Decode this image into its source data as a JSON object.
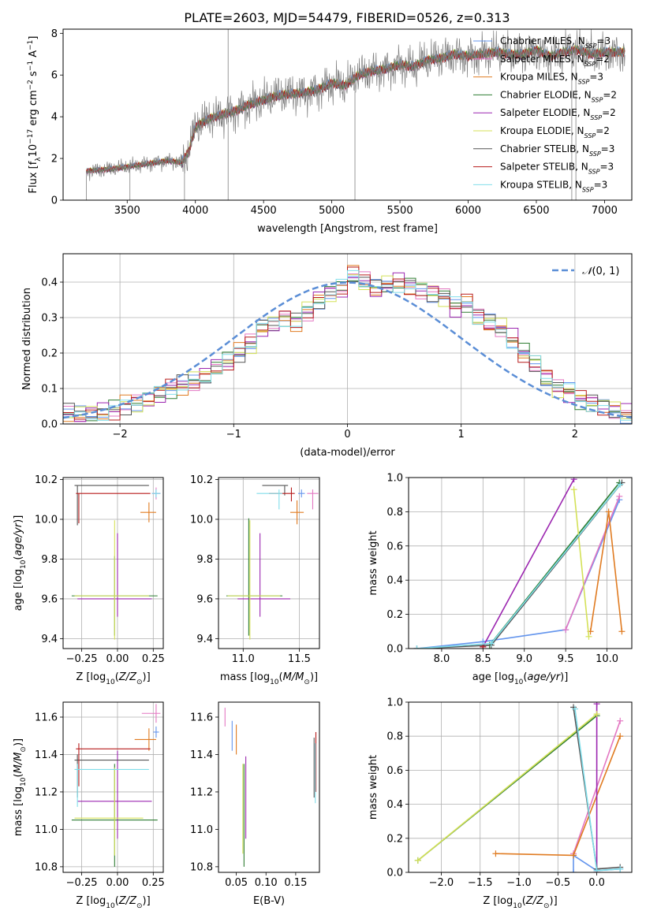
{
  "figure_title": "PLATE=2603, MJD=54479, FIBERID=0526, z=0.313",
  "colors": {
    "Chabrier MILES": "#6495ed",
    "Salpeter MILES": "#e377c2",
    "Kroupa MILES": "#e07b21",
    "Chabrier ELODIE": "#2e7d32",
    "Salpeter ELODIE": "#9c27b0",
    "Kroupa ELODIE": "#d4e157",
    "Chabrier STELIB": "#555555",
    "Salpeter STELIB": "#b71c1c",
    "Kroupa STELIB": "#80deea",
    "observed": "#808080",
    "gaussian": "#5b8ed6",
    "grid": "#b0b0b0"
  },
  "chart_data": [
    {
      "id": "spectrum",
      "type": "line",
      "title": "PLATE=2603, MJD=54479, FIBERID=0526, z=0.313",
      "xlabel": "wavelength [Angstrom, rest frame]",
      "ylabel": "Flux [f_λ 10^-17 erg cm^-2 s^-1 A^-1]",
      "xlim": [
        3030,
        7200
      ],
      "ylim": [
        0,
        8.2
      ],
      "xticks": [
        "3500",
        "4000",
        "4500",
        "5000",
        "5500",
        "6000",
        "6500",
        "7000"
      ],
      "yticks": [
        "0",
        "2",
        "4",
        "6",
        "8"
      ],
      "grid": false,
      "legend_position": "top-right",
      "continuum": {
        "x": [
          3200,
          3300,
          3400,
          3500,
          3600,
          3700,
          3800,
          3900,
          3950,
          4000,
          4100,
          4200,
          4300,
          4400,
          4500,
          4600,
          4700,
          4800,
          4900,
          5000,
          5100,
          5200,
          5300,
          5400,
          5500,
          5600,
          5700,
          5800,
          5900,
          6000,
          6100,
          6200,
          6300,
          6400,
          6500,
          6600,
          6700,
          6800,
          6900,
          7000
        ],
        "y": [
          1.4,
          1.45,
          1.5,
          1.6,
          1.7,
          1.8,
          1.9,
          1.8,
          2.3,
          3.5,
          3.9,
          4.1,
          4.3,
          4.6,
          4.8,
          5.0,
          5.1,
          5.15,
          5.3,
          5.6,
          5.5,
          6.0,
          6.2,
          6.3,
          6.5,
          6.4,
          6.7,
          6.8,
          7.0,
          6.9,
          7.0,
          7.1,
          7.0,
          7.0,
          7.2,
          6.9,
          7.1,
          7.2,
          7.0,
          7.1
        ]
      },
      "series": [
        {
          "name": "Chabrier MILES, N_SSP=3"
        },
        {
          "name": "Salpeter MILES, N_SSP=2"
        },
        {
          "name": "Kroupa MILES, N_SSP=3"
        },
        {
          "name": "Chabrier ELODIE, N_SSP=2"
        },
        {
          "name": "Salpeter ELODIE, N_SSP=2"
        },
        {
          "name": "Kroupa ELODIE, N_SSP=2"
        },
        {
          "name": "Chabrier STELIB, N_SSP=3"
        },
        {
          "name": "Salpeter STELIB, N_SSP=3"
        },
        {
          "name": "Kroupa STELIB, N_SSP=3"
        }
      ]
    },
    {
      "id": "residuals",
      "type": "line",
      "xlabel": "(data-model)/error",
      "ylabel": "Normed distribution",
      "xlim": [
        -2.5,
        2.5
      ],
      "ylim": [
        0,
        0.48
      ],
      "xticks": [
        "−2",
        "−1",
        "0",
        "1",
        "2"
      ],
      "yticks": [
        "0.0",
        "0.1",
        "0.2",
        "0.3",
        "0.4"
      ],
      "grid": true,
      "legend": "N(0,1)",
      "legend_position": "top-right",
      "bins": {
        "start": -2.5,
        "width": 0.1,
        "count": 50
      },
      "histogram_base": [
        0.03,
        0.025,
        0.03,
        0.035,
        0.04,
        0.055,
        0.06,
        0.07,
        0.085,
        0.1,
        0.11,
        0.12,
        0.135,
        0.16,
        0.175,
        0.2,
        0.225,
        0.27,
        0.28,
        0.3,
        0.29,
        0.32,
        0.35,
        0.37,
        0.38,
        0.42,
        0.4,
        0.38,
        0.39,
        0.4,
        0.39,
        0.38,
        0.37,
        0.36,
        0.33,
        0.34,
        0.3,
        0.285,
        0.27,
        0.24,
        0.2,
        0.17,
        0.13,
        0.1,
        0.09,
        0.07,
        0.06,
        0.05,
        0.04,
        0.03
      ]
    },
    {
      "id": "age_vs_Z",
      "type": "scatter",
      "xlabel": "Z [log10(Z/Z⊙)]",
      "ylabel": "age  [log10(age/yr)]",
      "xlim": [
        -0.38,
        0.32
      ],
      "ylim": [
        9.35,
        10.21
      ],
      "xticks": [
        "−0.25",
        "0.00",
        "0.25"
      ],
      "yticks": [
        "9.4",
        "9.6",
        "9.8",
        "10.0",
        "10.2"
      ],
      "grid": true,
      "points": [
        {
          "series": "Chabrier MILES",
          "x": 0.27,
          "y": 10.13,
          "xerr": [
            0.03,
            0.03
          ],
          "yerr": [
            0.02,
            0.02
          ]
        },
        {
          "series": "Salpeter MILES",
          "x": 0.27,
          "y": 10.13,
          "xerr": [
            0.03,
            0.03
          ],
          "yerr": [
            0.03,
            0.03
          ]
        },
        {
          "series": "Kroupa MILES",
          "x": 0.22,
          "y": 10.035,
          "xerr": [
            0.06,
            0.05
          ],
          "yerr": [
            0.05,
            0.05
          ]
        },
        {
          "series": "Chabrier ELODIE",
          "x": -0.02,
          "y": 9.615,
          "xerr": [
            0.3,
            0.3
          ],
          "yerr": [
            0.2,
            0.2
          ]
        },
        {
          "series": "Salpeter ELODIE",
          "x": 0.0,
          "y": 9.6,
          "xerr": [
            0.28,
            0.24
          ],
          "yerr": [
            0.09,
            0.33
          ]
        },
        {
          "series": "Kroupa ELODIE",
          "x": -0.02,
          "y": 9.615,
          "xerr": [
            0.28,
            0.24
          ],
          "yerr": [
            0.22,
            0.38
          ]
        },
        {
          "series": "Chabrier STELIB",
          "x": -0.28,
          "y": 10.17,
          "xerr": [
            0.02,
            0.5
          ],
          "yerr": [
            0.2,
            0.0
          ]
        },
        {
          "series": "Salpeter STELIB",
          "x": -0.27,
          "y": 10.13,
          "xerr": [
            0.02,
            0.5
          ],
          "yerr": [
            0.15,
            0.0
          ]
        },
        {
          "series": "Kroupa STELIB",
          "x": 0.27,
          "y": 10.13,
          "xerr": [
            0.03,
            0.03
          ],
          "yerr": [
            0.02,
            0.02
          ]
        }
      ]
    },
    {
      "id": "age_vs_mass",
      "type": "scatter",
      "xlabel": "mass [log10(M/M⊙)]",
      "xlim": [
        10.78,
        11.68
      ],
      "ylim": [
        9.35,
        10.21
      ],
      "xticks": [
        "11.0",
        "11.5"
      ],
      "yticks": [
        "9.4",
        "9.6",
        "9.8",
        "10.0",
        "10.2"
      ],
      "grid": true,
      "points": [
        {
          "series": "Chabrier MILES",
          "x": 11.52,
          "y": 10.13,
          "xerr": [
            0.03,
            0.03
          ],
          "yerr": [
            0.02,
            0.02
          ]
        },
        {
          "series": "Salpeter MILES",
          "x": 11.62,
          "y": 10.13,
          "xerr": [
            0.05,
            0.05
          ],
          "yerr": [
            0.08,
            0.02
          ]
        },
        {
          "series": "Kroupa MILES",
          "x": 11.48,
          "y": 10.035,
          "xerr": [
            0.06,
            0.06
          ],
          "yerr": [
            0.06,
            0.06
          ]
        },
        {
          "series": "Chabrier ELODIE",
          "x": 11.05,
          "y": 9.615,
          "xerr": [
            0.2,
            0.3
          ],
          "yerr": [
            0.2,
            0.39
          ]
        },
        {
          "series": "Salpeter ELODIE",
          "x": 11.15,
          "y": 9.6,
          "xerr": [
            0.2,
            0.27
          ],
          "yerr": [
            0.09,
            0.33
          ]
        },
        {
          "series": "Kroupa ELODIE",
          "x": 11.06,
          "y": 9.615,
          "xerr": [
            0.2,
            0.27
          ],
          "yerr": [
            0.22,
            0.38
          ]
        },
        {
          "series": "Chabrier STELIB",
          "x": 11.37,
          "y": 10.17,
          "xerr": [
            0.2,
            0.03
          ],
          "yerr": [
            0.05,
            0.0
          ]
        },
        {
          "series": "Salpeter STELIB",
          "x": 11.43,
          "y": 10.13,
          "xerr": [
            0.2,
            0.03
          ],
          "yerr": [
            0.04,
            0.03
          ]
        },
        {
          "series": "Kroupa STELIB",
          "x": 11.32,
          "y": 10.13,
          "xerr": [
            0.2,
            0.03
          ],
          "yerr": [
            0.08,
            0.02
          ]
        }
      ]
    },
    {
      "id": "weight_vs_age",
      "type": "line",
      "xlabel": "age  [log10(age/yr)]",
      "ylabel": "mass weight",
      "xlim": [
        7.6,
        10.3
      ],
      "ylim": [
        0,
        1.0
      ],
      "xticks": [
        "8.0",
        "8.5",
        "9.0",
        "9.5",
        "10.0"
      ],
      "yticks": [
        "0.0",
        "0.2",
        "0.4",
        "0.6",
        "0.8",
        "1.0"
      ],
      "grid": true,
      "lines": [
        {
          "series": "Chabrier MILES",
          "x": [
            7.7,
            8.5,
            9.5,
            10.15
          ],
          "y": [
            0.0,
            0.04,
            0.11,
            0.87
          ]
        },
        {
          "series": "Salpeter MILES",
          "x": [
            9.5,
            10.15
          ],
          "y": [
            0.11,
            0.89
          ]
        },
        {
          "series": "Kroupa MILES",
          "x": [
            9.8,
            10.02,
            10.18
          ],
          "y": [
            0.1,
            0.8,
            0.1
          ]
        },
        {
          "series": "Chabrier ELODIE",
          "x": [
            8.58,
            10.15
          ],
          "y": [
            0.02,
            0.97
          ]
        },
        {
          "series": "Salpeter ELODIE",
          "x": [
            8.5,
            9.6
          ],
          "y": [
            0.01,
            0.99
          ]
        },
        {
          "series": "Kroupa ELODIE",
          "x": [
            9.6,
            9.78
          ],
          "y": [
            0.93,
            0.07
          ]
        },
        {
          "series": "Chabrier STELIB",
          "x": [
            7.7,
            8.6,
            10.18
          ],
          "y": [
            0.0,
            0.02,
            0.97
          ]
        },
        {
          "series": "Salpeter STELIB",
          "x": [
            8.5
          ],
          "y": [
            0.01
          ]
        },
        {
          "series": "Kroupa STELIB",
          "x": [
            7.7,
            8.6,
            10.16
          ],
          "y": [
            0.0,
            0.03,
            0.96
          ]
        }
      ]
    },
    {
      "id": "mass_vs_Z",
      "type": "scatter",
      "xlabel": "Z [log10(Z/Z⊙)]",
      "ylabel": "mass [log10(M/M⊙)]",
      "xlim": [
        -0.38,
        0.32
      ],
      "ylim": [
        10.77,
        11.68
      ],
      "xticks": [
        "−0.25",
        "0.00",
        "0.25"
      ],
      "yticks": [
        "10.8",
        "11.0",
        "11.2",
        "11.4",
        "11.6"
      ],
      "grid": true,
      "points": [
        {
          "series": "Chabrier MILES",
          "x": 0.27,
          "y": 11.52,
          "xerr": [
            0.02,
            0.02
          ],
          "yerr": [
            0.03,
            0.03
          ]
        },
        {
          "series": "Salpeter MILES",
          "x": 0.27,
          "y": 11.62,
          "xerr": [
            0.1,
            0.03
          ],
          "yerr": [
            0.05,
            0.05
          ]
        },
        {
          "series": "Kroupa MILES",
          "x": 0.22,
          "y": 11.48,
          "xerr": [
            0.1,
            0.05
          ],
          "yerr": [
            0.06,
            0.06
          ]
        },
        {
          "series": "Chabrier ELODIE",
          "x": -0.02,
          "y": 11.05,
          "xerr": [
            0.3,
            0.3
          ],
          "yerr": [
            0.25,
            0.3
          ]
        },
        {
          "series": "Salpeter ELODIE",
          "x": 0.0,
          "y": 11.15,
          "xerr": [
            0.28,
            0.24
          ],
          "yerr": [
            0.2,
            0.27
          ]
        },
        {
          "series": "Kroupa ELODIE",
          "x": -0.02,
          "y": 11.06,
          "xerr": [
            0.28,
            0.2
          ],
          "yerr": [
            0.2,
            0.27
          ]
        },
        {
          "series": "Chabrier STELIB",
          "x": -0.28,
          "y": 11.37,
          "xerr": [
            0.02,
            0.5
          ],
          "yerr": [
            0.2,
            0.03
          ]
        },
        {
          "series": "Salpeter STELIB",
          "x": -0.27,
          "y": 11.43,
          "xerr": [
            0.02,
            0.5
          ],
          "yerr": [
            0.2,
            0.03
          ]
        },
        {
          "series": "Kroupa STELIB",
          "x": -0.28,
          "y": 11.32,
          "xerr": [
            0.02,
            0.5
          ],
          "yerr": [
            0.2,
            0.03
          ]
        }
      ]
    },
    {
      "id": "mass_vs_ebv",
      "type": "scatter",
      "xlabel": "E(B-V)",
      "xlim": [
        0.02,
        0.19
      ],
      "ylim": [
        10.77,
        11.68
      ],
      "xticks": [
        "0.05",
        "0.10",
        "0.15"
      ],
      "yticks": [
        "10.8",
        "11.0",
        "11.2",
        "11.4",
        "11.6"
      ],
      "grid": false,
      "points": [
        {
          "series": "Chabrier MILES",
          "x": 0.043,
          "y": 11.5,
          "yerr": [
            0.08,
            0.08
          ]
        },
        {
          "series": "Salpeter MILES",
          "x": 0.031,
          "y": 11.6,
          "yerr": [
            0.05,
            0.05
          ]
        },
        {
          "series": "Kroupa MILES",
          "x": 0.05,
          "y": 11.48,
          "yerr": [
            0.08,
            0.08
          ]
        },
        {
          "series": "Chabrier ELODIE",
          "x": 0.063,
          "y": 11.05,
          "yerr": [
            0.25,
            0.3
          ]
        },
        {
          "series": "Salpeter ELODIE",
          "x": 0.066,
          "y": 11.15,
          "yerr": [
            0.2,
            0.24
          ]
        },
        {
          "series": "Kroupa ELODIE",
          "x": 0.061,
          "y": 11.1,
          "yerr": [
            0.23,
            0.25
          ]
        },
        {
          "series": "Chabrier STELIB",
          "x": 0.181,
          "y": 11.33,
          "yerr": [
            0.16,
            0.16
          ]
        },
        {
          "series": "Salpeter STELIB",
          "x": 0.184,
          "y": 11.36,
          "yerr": [
            0.16,
            0.16
          ]
        },
        {
          "series": "Kroupa STELIB",
          "x": 0.183,
          "y": 11.3,
          "yerr": [
            0.16,
            0.16
          ]
        }
      ]
    },
    {
      "id": "weight_vs_Z",
      "type": "line",
      "xlabel": "Z [log10(Z/Z⊙)]",
      "ylabel": "mass weight",
      "xlim": [
        -2.42,
        0.45
      ],
      "ylim": [
        0,
        1.0
      ],
      "xticks": [
        "−2.0",
        "−1.5",
        "−1.0",
        "−0.5",
        "0.0"
      ],
      "yticks": [
        "0.0",
        "0.2",
        "0.4",
        "0.6",
        "0.8",
        "1.0"
      ],
      "grid": true,
      "lines": [
        {
          "series": "Chabrier MILES",
          "x": [
            -0.3,
            -0.3,
            0.0,
            0.3
          ],
          "y": [
            0.0,
            0.1,
            0.01,
            0.02
          ]
        },
        {
          "series": "Salpeter MILES",
          "x": [
            -0.3,
            0.3
          ],
          "y": [
            0.11,
            0.89
          ]
        },
        {
          "series": "Kroupa MILES",
          "x": [
            -1.3,
            -0.3,
            0.3
          ],
          "y": [
            0.11,
            0.1,
            0.8
          ]
        },
        {
          "series": "Chabrier ELODIE",
          "x": [
            -2.3,
            0.0
          ],
          "y": [
            0.07,
            0.92
          ]
        },
        {
          "series": "Salpeter ELODIE",
          "x": [
            0.0,
            0.0
          ],
          "y": [
            0.0,
            0.99
          ]
        },
        {
          "series": "Kroupa ELODIE",
          "x": [
            -2.3,
            0.0
          ],
          "y": [
            0.07,
            0.93
          ]
        },
        {
          "series": "Chabrier STELIB",
          "x": [
            -0.3,
            0.0,
            0.3
          ],
          "y": [
            0.97,
            0.02,
            0.03
          ]
        },
        {
          "series": "Salpeter STELIB",
          "x": [
            0.0
          ],
          "y": [
            0.0
          ]
        },
        {
          "series": "Kroupa STELIB",
          "x": [
            -0.28,
            0.0,
            0.3
          ],
          "y": [
            0.96,
            0.01,
            0.02
          ]
        }
      ]
    }
  ]
}
